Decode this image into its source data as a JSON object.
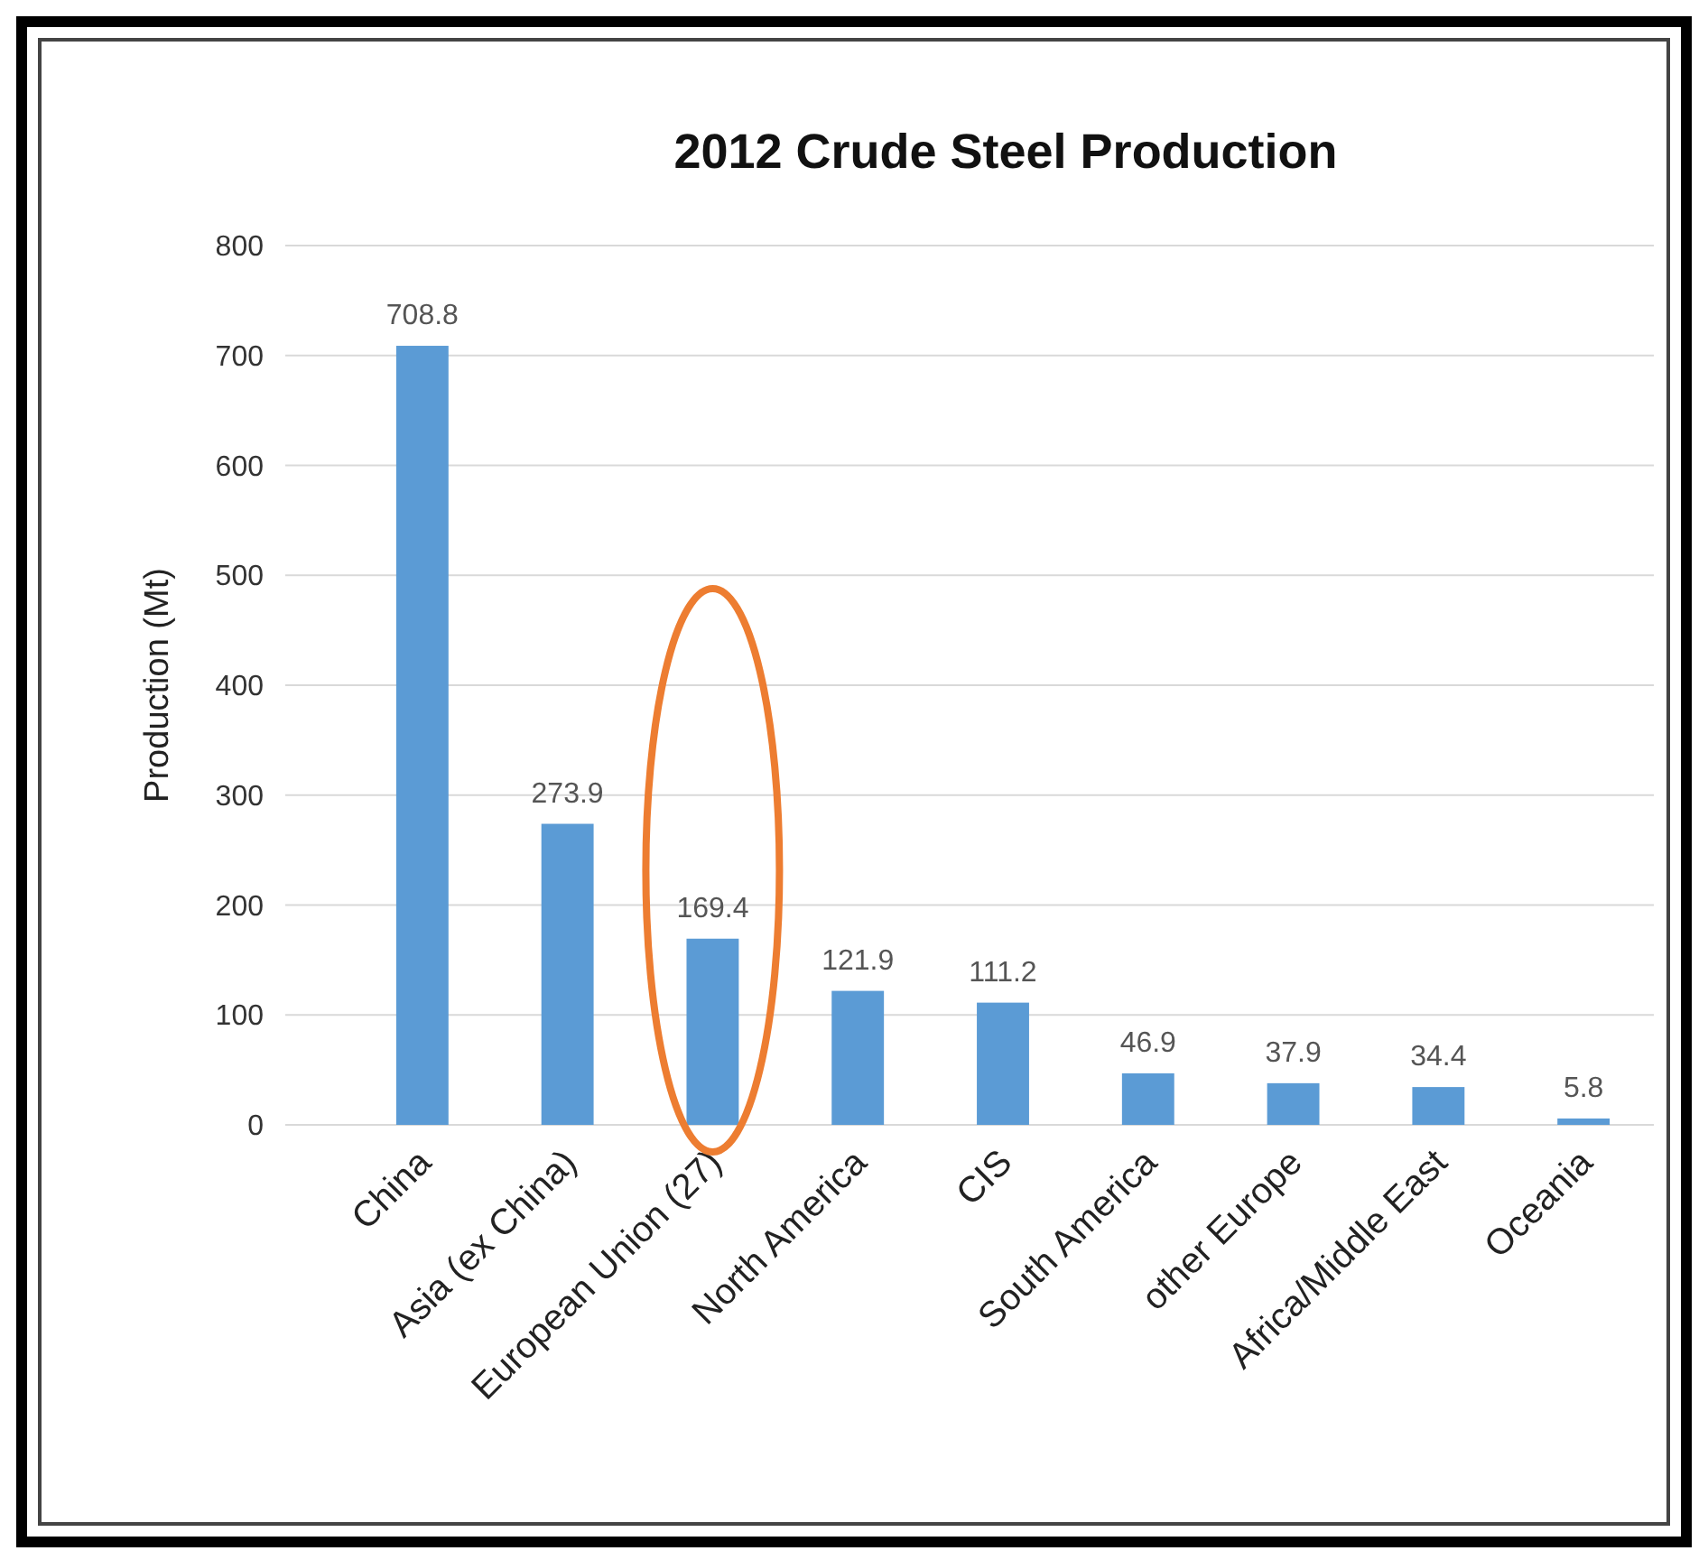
{
  "chart_data": {
    "type": "bar",
    "title": "2012 Crude Steel Production",
    "ylabel": "Production (Mt)",
    "categories": [
      "China",
      "Asia (ex China)",
      "European Union (27)",
      "North America",
      "CIS",
      "South America",
      "other Europe",
      "Africa/Middle East",
      "Oceania"
    ],
    "values": [
      708.8,
      273.9,
      169.4,
      121.9,
      111.2,
      46.9,
      37.9,
      34.4,
      5.8
    ],
    "color": "#5b9bd5",
    "ylim": [
      0,
      800
    ],
    "yticks": [
      0,
      100,
      200,
      300,
      400,
      500,
      600,
      700,
      800
    ],
    "grid": "y",
    "data_labels": true
  }
}
